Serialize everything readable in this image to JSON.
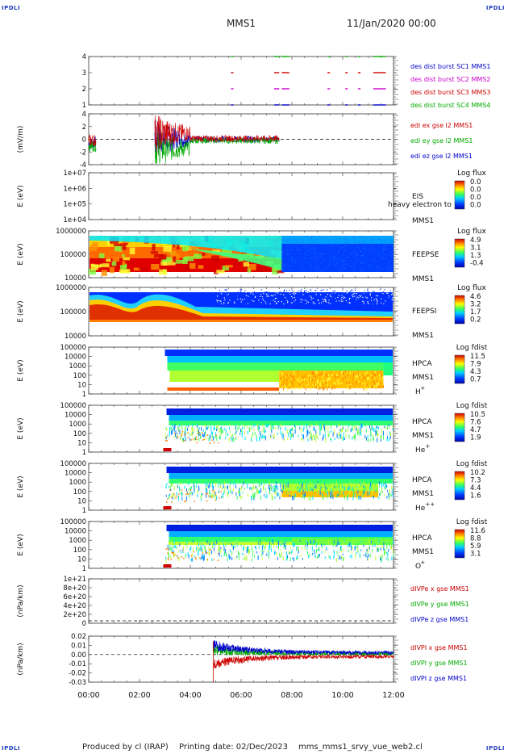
{
  "corner_labels": [
    "IPDLI",
    "IPDLI",
    "IPDLI",
    "IPDLI"
  ],
  "header": {
    "spacecraft": "MMS1",
    "date": "11/Jan/2020 00:00"
  },
  "footer": {
    "producer": "Produced by cl (IRAP)",
    "printing": "Printing date: 02/Dec/2023",
    "file": "mms_mms1_srvy_vue_web2.cl"
  },
  "time_axis": {
    "ticks": [
      "00:00",
      "02:00",
      "04:00",
      "06:00",
      "08:00",
      "10:00",
      "12:00"
    ]
  },
  "colors": {
    "mms1": "#0000cc",
    "mms2": "#cc00cc",
    "mms3": "#cc0000",
    "mms4": "#00aa00",
    "ex": "#cc0000",
    "ey": "#00aa00",
    "ez": "#0000cc"
  },
  "panels": {
    "burst": {
      "y_ticks": [
        "4",
        "3",
        "2",
        "1"
      ],
      "legend": [
        "des dist burst SC1 MMS1",
        "des dist burst SC2 MMS2",
        "des dist burst SC3 MMS3",
        "des dist burst SC4 MMS4"
      ]
    },
    "efield": {
      "ylabel": "(mV/m)",
      "y_ticks": [
        "4",
        "2",
        "0",
        "-2",
        "-4"
      ],
      "legend": [
        "edi ex gse l2 MMS1",
        "edi ey gse l2 MMS1",
        "edi ez gse l2 MMS1"
      ]
    },
    "eis": {
      "ylabel": "E (eV)",
      "y_ticks": [
        "1e+07",
        "1e+06",
        "1e+05",
        "1e+04"
      ],
      "side_labels": [
        "EIS",
        "MMS1"
      ],
      "overlay": "heavy electron to",
      "colorbar_title": "Log flux",
      "colorbar_ticks": [
        "0.0",
        "0.0",
        "0.0",
        "0.0"
      ]
    },
    "feepse": {
      "ylabel": "E (eV)",
      "y_ticks": [
        "1000000",
        "100000",
        "10000"
      ],
      "side_labels": [
        "FEEPSE",
        "MMS1"
      ],
      "colorbar_title": "Log flux",
      "colorbar_ticks": [
        "4.9",
        "3.1",
        "1.3",
        "-0.4"
      ]
    },
    "feepsi": {
      "ylabel": "E (eV)",
      "y_ticks": [
        "1000000",
        "100000",
        "10000"
      ],
      "side_labels": [
        "FEEPSI",
        "MMS1"
      ],
      "colorbar_title": "Log flux",
      "colorbar_ticks": [
        "4.6",
        "3.2",
        "1.7",
        "0.2"
      ]
    },
    "hpca_h": {
      "ylabel": "E (eV)",
      "y_ticks": [
        "100000",
        "10000",
        "1000",
        "100",
        "10",
        "1"
      ],
      "side_labels": [
        "HPCA",
        "MMS1"
      ],
      "species": "H",
      "charge": "+",
      "colorbar_title": "Log fdist",
      "colorbar_ticks": [
        "11.5",
        "7.9",
        "4.3",
        "0.7"
      ]
    },
    "hpca_he": {
      "ylabel": "E (eV)",
      "y_ticks": [
        "100000",
        "10000",
        "1000",
        "100",
        "10",
        "1"
      ],
      "side_labels": [
        "HPCA",
        "MMS1"
      ],
      "species": "He",
      "charge": "+",
      "colorbar_title": "Log fdist",
      "colorbar_ticks": [
        "10.5",
        "7.6",
        "4.7",
        "1.9"
      ]
    },
    "hpca_hepp": {
      "ylabel": "E (eV)",
      "y_ticks": [
        "100000",
        "10000",
        "1000",
        "100",
        "10",
        "1"
      ],
      "side_labels": [
        "HPCA",
        "MMS1"
      ],
      "species": "He",
      "charge": "++",
      "colorbar_title": "Log fdist",
      "colorbar_ticks": [
        "10.2",
        "7.3",
        "4.4",
        "1.6"
      ]
    },
    "hpca_o": {
      "ylabel": "E (eV)",
      "y_ticks": [
        "100000",
        "10000",
        "1000",
        "100",
        "10",
        "1"
      ],
      "side_labels": [
        "HPCA",
        "MMS1"
      ],
      "species": "O",
      "charge": "+",
      "colorbar_title": "Log fdist",
      "colorbar_ticks": [
        "11.6",
        "8.8",
        "5.9",
        "3.1"
      ]
    },
    "divpe": {
      "ylabel": "(nPa/km)",
      "y_ticks": [
        "1e+21",
        "8e+20",
        "6e+20",
        "4e+20",
        "2e+20",
        "0"
      ],
      "legend": [
        "dIVPe x gse MMS1",
        "dIVPe y gse MMS1",
        "dIVPe z gse MMS1"
      ]
    },
    "divpi": {
      "ylabel": "(nPa/km)",
      "y_ticks": [
        "0.02",
        "0.01",
        "0.00",
        "-0.01",
        "-0.02",
        "-0.03"
      ],
      "legend": [
        "dIVPI x gse MMS1",
        "dIVPI y gse MMS1",
        "dIVPI z gse MMS1"
      ]
    }
  },
  "chart_data": {
    "type": "heatmap",
    "x": [
      "00:00",
      "02:00",
      "04:00",
      "06:00",
      "08:00",
      "10:00",
      "12:00"
    ],
    "xlim": [
      "00:00",
      "12:00"
    ],
    "panels": [
      {
        "name": "burst",
        "type": "scatter",
        "ylim": [
          0.5,
          4.5
        ],
        "intervals_hours": [
          [
            5.6,
            5.7
          ],
          [
            7.3,
            7.5
          ],
          [
            7.6,
            7.9
          ],
          [
            9.4,
            9.5
          ],
          [
            10.1,
            10.2
          ],
          [
            10.6,
            10.7
          ],
          [
            11.2,
            11.7
          ]
        ]
      },
      {
        "name": "efield",
        "type": "line",
        "ylim": [
          -5,
          5
        ],
        "data_hours": [
          [
            0.0,
            0.3
          ],
          [
            2.6,
            7.5
          ]
        ],
        "series": [
          {
            "name": "edi ex gse l2 MMS1"
          },
          {
            "name": "edi ey gse l2 MMS1"
          },
          {
            "name": "edi ez gse l2 MMS1"
          }
        ]
      },
      {
        "name": "eis",
        "type": "heatmap",
        "ylim": [
          10000,
          10000000
        ],
        "yscale": "log",
        "data": "empty"
      },
      {
        "name": "feepse",
        "type": "heatmap",
        "ylim": [
          10000,
          1000000
        ],
        "yscale": "log",
        "transition_hour": 7.6
      },
      {
        "name": "feepsi",
        "type": "heatmap",
        "ylim": [
          10000,
          1000000
        ],
        "yscale": "log"
      },
      {
        "name": "hpca_h",
        "type": "heatmap",
        "ylim": [
          1,
          100000
        ],
        "yscale": "log",
        "start_hour": 3.0
      },
      {
        "name": "hpca_he",
        "type": "heatmap",
        "ylim": [
          1,
          100000
        ],
        "yscale": "log",
        "start_hour": 3.1
      },
      {
        "name": "hpca_hepp",
        "type": "heatmap",
        "ylim": [
          1,
          100000
        ],
        "yscale": "log",
        "start_hour": 3.1
      },
      {
        "name": "hpca_o",
        "type": "heatmap",
        "ylim": [
          1,
          100000
        ],
        "yscale": "log",
        "start_hour": 3.0
      },
      {
        "name": "divpe",
        "type": "line",
        "ylim": [
          0,
          1e+21
        ],
        "data": "none"
      },
      {
        "name": "divpi",
        "type": "line",
        "ylim": [
          -0.03,
          0.02
        ],
        "start_hour": 4.9
      }
    ]
  }
}
